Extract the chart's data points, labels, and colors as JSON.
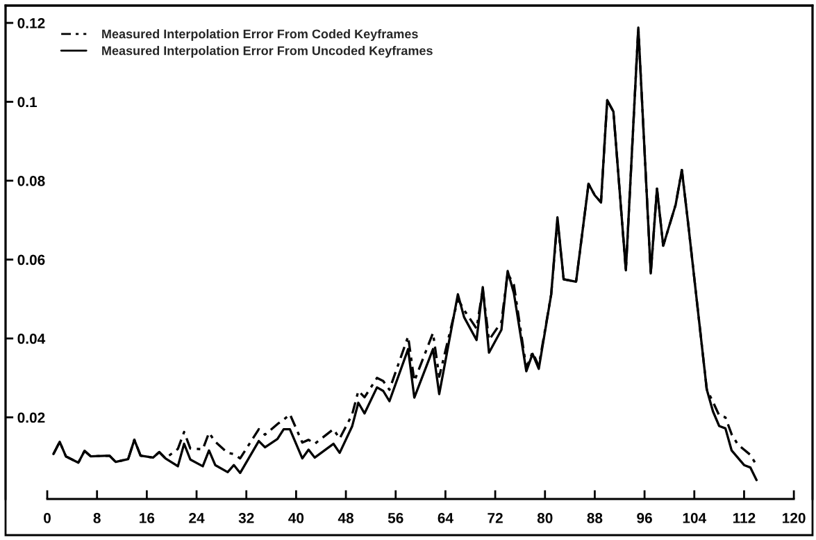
{
  "chart_data": {
    "type": "line",
    "xlim": [
      -6.7,
      123
    ],
    "xticks": [
      0,
      8,
      16,
      24,
      32,
      40,
      48,
      56,
      64,
      72,
      80,
      88,
      96,
      104,
      112,
      120
    ],
    "ylim": [
      -0.0007,
      0.1244
    ],
    "yticks": [
      0.02,
      0.04,
      0.06,
      0.08,
      0.1,
      0.12
    ],
    "grid": false,
    "legend": "top left",
    "marker": "none",
    "series": [
      {
        "name": "Measured Interpolation Error From Coded Keyframes",
        "color": "#000000",
        "line_style": "dashed",
        "x": [
          1,
          2,
          3,
          5,
          6,
          7,
          10,
          11,
          13,
          14,
          15,
          17,
          18,
          19,
          21,
          22,
          23,
          25,
          26,
          27,
          29,
          30,
          31,
          34,
          35,
          37,
          38,
          39,
          41,
          42,
          43,
          46,
          47,
          49,
          50,
          51,
          53,
          54,
          55,
          58,
          59,
          62,
          63,
          66,
          67,
          69,
          70,
          71,
          73,
          74,
          75,
          77,
          78,
          79,
          81,
          82,
          83,
          85,
          87,
          88,
          89,
          90,
          91,
          93,
          95,
          97,
          98,
          99,
          101,
          102,
          103,
          106,
          107,
          108,
          109,
          110,
          111,
          113,
          114
        ],
        "values": [
          0.0107,
          0.0138,
          0.0101,
          0.0085,
          0.0115,
          0.0101,
          0.0103,
          0.0087,
          0.0094,
          0.0143,
          0.0103,
          0.0098,
          0.0112,
          0.0096,
          0.012,
          0.0163,
          0.0121,
          0.0119,
          0.0161,
          0.0138,
          0.011,
          0.0107,
          0.0096,
          0.017,
          0.0156,
          0.0183,
          0.0194,
          0.0208,
          0.0136,
          0.0143,
          0.0133,
          0.017,
          0.0146,
          0.0207,
          0.0267,
          0.0251,
          0.03,
          0.0292,
          0.027,
          0.0405,
          0.0292,
          0.0414,
          0.0303,
          0.05,
          0.0472,
          0.0425,
          0.0525,
          0.0396,
          0.0442,
          0.0565,
          0.0536,
          0.0325,
          0.0365,
          0.033,
          0.0512,
          0.07,
          0.055,
          0.0544,
          0.0792,
          0.0763,
          0.0745,
          0.1004,
          0.0975,
          0.0573,
          0.1188,
          0.0565,
          0.078,
          0.0635,
          0.0739,
          0.0827,
          0.0693,
          0.0271,
          0.0239,
          0.0205,
          0.02,
          0.0157,
          0.0131,
          0.0105,
          0.0079
        ]
      },
      {
        "name": "Measured Interpolation Error From Uncoded Keyframes",
        "color": "#000000",
        "line_style": "solid",
        "x": [
          1,
          2,
          3,
          5,
          6,
          7,
          10,
          11,
          13,
          14,
          15,
          17,
          18,
          19,
          21,
          22,
          23,
          25,
          26,
          27,
          29,
          30,
          31,
          34,
          35,
          37,
          38,
          39,
          41,
          42,
          43,
          46,
          47,
          49,
          50,
          51,
          53,
          54,
          55,
          58,
          59,
          62,
          63,
          66,
          67,
          69,
          70,
          71,
          73,
          74,
          75,
          77,
          78,
          79,
          81,
          82,
          83,
          85,
          87,
          88,
          89,
          90,
          91,
          93,
          95,
          97,
          98,
          99,
          101,
          102,
          103,
          106,
          107,
          108,
          109,
          110,
          112,
          113,
          114
        ],
        "values": [
          0.0107,
          0.0138,
          0.0101,
          0.0085,
          0.0115,
          0.0101,
          0.0103,
          0.0087,
          0.0094,
          0.0143,
          0.0103,
          0.0098,
          0.0112,
          0.0096,
          0.0076,
          0.0133,
          0.0093,
          0.0076,
          0.0116,
          0.0079,
          0.0061,
          0.0079,
          0.0059,
          0.014,
          0.0124,
          0.0145,
          0.017,
          0.017,
          0.0096,
          0.0118,
          0.0098,
          0.0133,
          0.011,
          0.0177,
          0.0237,
          0.021,
          0.0276,
          0.0267,
          0.0241,
          0.0373,
          0.025,
          0.0373,
          0.0259,
          0.0512,
          0.0454,
          0.0396,
          0.053,
          0.0364,
          0.0422,
          0.0571,
          0.0515,
          0.0317,
          0.0361,
          0.0323,
          0.0512,
          0.0707,
          0.055,
          0.0544,
          0.0792,
          0.0763,
          0.0745,
          0.1004,
          0.0975,
          0.0573,
          0.1188,
          0.0565,
          0.078,
          0.0635,
          0.0739,
          0.0827,
          0.0693,
          0.0271,
          0.0215,
          0.0178,
          0.0172,
          0.0116,
          0.0079,
          0.0073,
          0.0041
        ]
      }
    ]
  }
}
